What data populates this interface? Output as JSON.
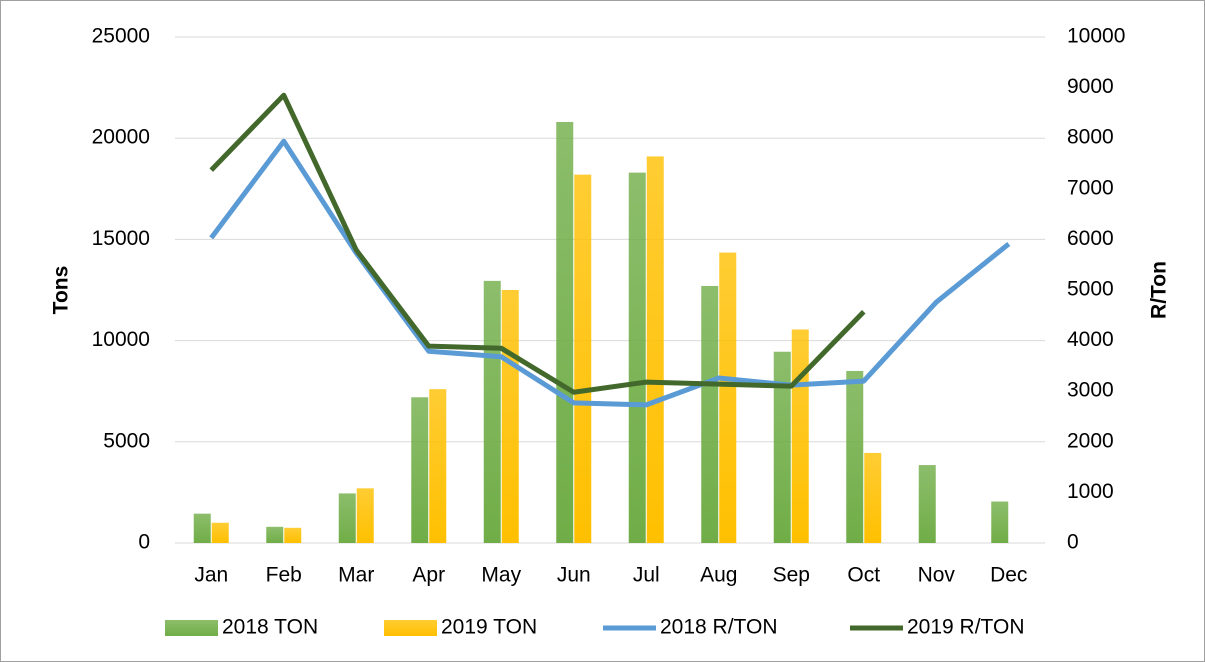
{
  "chart_data": {
    "type": "combo",
    "categories": [
      "Jan",
      "Feb",
      "Mar",
      "Apr",
      "May",
      "Jun",
      "Jul",
      "Aug",
      "Sep",
      "Oct",
      "Nov",
      "Dec"
    ],
    "series": [
      {
        "name": "2018 TON",
        "type": "bar",
        "color": "#70ad47",
        "values": [
          1450,
          800,
          2450,
          7200,
          12950,
          20800,
          18300,
          12700,
          9450,
          8500,
          3850,
          2050
        ]
      },
      {
        "name": "2019 TON",
        "type": "bar",
        "color": "#ffc000",
        "values": [
          1000,
          750,
          2700,
          7600,
          12500,
          18200,
          19100,
          14350,
          10550,
          4450,
          null,
          null
        ]
      },
      {
        "name": "2018 R/TON",
        "type": "line",
        "axis": "y2",
        "color": "#5b9bd5",
        "values": [
          6030,
          7940,
          5730,
          3790,
          3680,
          2770,
          2730,
          3260,
          3120,
          3200,
          4760,
          5910
        ]
      },
      {
        "name": "2019 R/TON",
        "type": "line",
        "axis": "y2",
        "color": "#43682b",
        "values": [
          7370,
          8850,
          5790,
          3890,
          3850,
          2980,
          3180,
          3140,
          3100,
          4570,
          null,
          null
        ]
      }
    ],
    "ylabel": "Tons",
    "y2label": "R/Ton",
    "ylim": [
      0,
      25000
    ],
    "yticks": [
      0,
      5000,
      10000,
      15000,
      20000,
      25000
    ],
    "y2lim": [
      0,
      10000
    ],
    "y2ticks": [
      0,
      1000,
      2000,
      3000,
      4000,
      5000,
      6000,
      7000,
      8000,
      9000,
      10000
    ],
    "grid": true,
    "legend": "bottom"
  }
}
